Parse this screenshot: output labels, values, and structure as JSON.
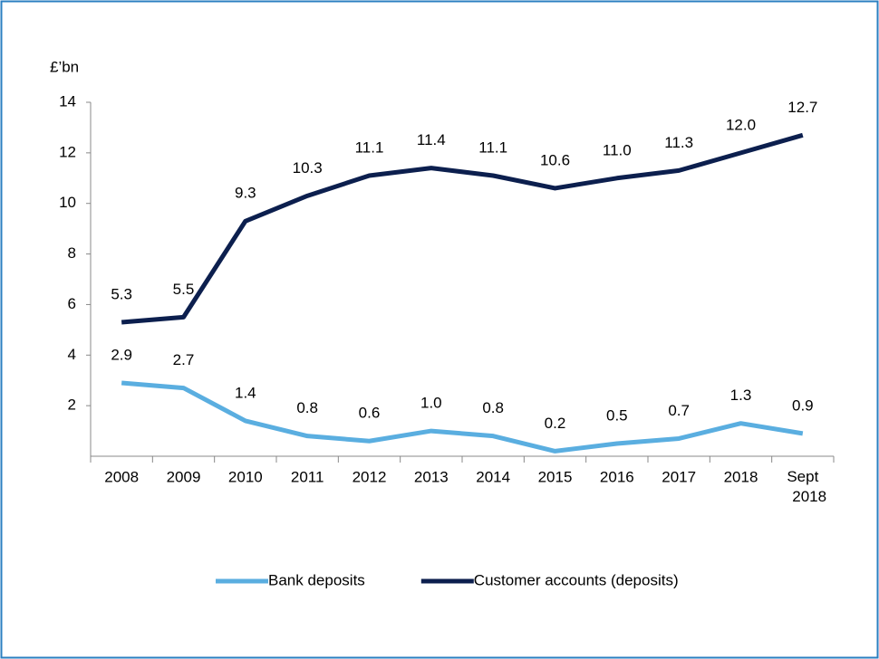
{
  "chart_data": {
    "type": "line",
    "y_label": "£’bn",
    "categories": [
      "2008",
      "2009",
      "2010",
      "2011",
      "2012",
      "2013",
      "2014",
      "2015",
      "2016",
      "2017",
      "2018",
      "Sept 2018"
    ],
    "series": [
      {
        "name": "Bank deposits",
        "color": "#5aaee0",
        "values": [
          2.9,
          2.7,
          1.4,
          0.8,
          0.6,
          1.0,
          0.8,
          0.2,
          0.5,
          0.7,
          1.3,
          0.9
        ],
        "value_labels": [
          "2.9",
          "2.7",
          "1.4",
          "0.8",
          "0.6",
          "1.0",
          "0.8",
          "0.2",
          "0.5",
          "0.7",
          "1.3",
          "0.9"
        ]
      },
      {
        "name": "Customer accounts (deposits)",
        "color": "#0c1f4e",
        "values": [
          5.3,
          5.5,
          9.3,
          10.3,
          11.1,
          11.4,
          11.1,
          10.6,
          11.0,
          11.3,
          12.0,
          12.7
        ],
        "value_labels": [
          "5.3",
          "5.5",
          "9.3",
          "10.3",
          "11.1",
          "11.4",
          "11.1",
          "10.6",
          "11.0",
          "11.3",
          "12.0",
          "12.7"
        ]
      }
    ],
    "ylim": [
      0,
      14
    ],
    "yticks": [
      2,
      4,
      6,
      8,
      10,
      12,
      14
    ],
    "grid": false,
    "legend": "bottom"
  }
}
